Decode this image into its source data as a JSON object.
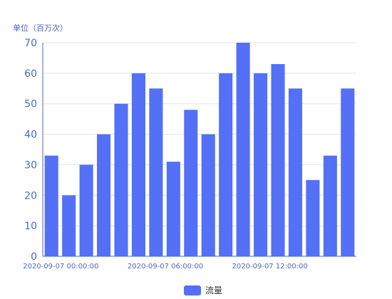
{
  "chart_data": {
    "type": "bar",
    "ylabel": "单位（百万次）",
    "ylim": [
      0,
      70
    ],
    "yticks": [
      0,
      10,
      20,
      30,
      40,
      50,
      60,
      70
    ],
    "x_tick_labels": [
      "2020-09-07 00:00:00",
      "2020-09-07 06:00:00",
      "2020-09-07 12:00:00"
    ],
    "x_tick_bar_index": [
      0,
      6,
      12
    ],
    "series": [
      {
        "name": "流量",
        "values": [
          33,
          20,
          30,
          40,
          50,
          60,
          55,
          31,
          48,
          40,
          60,
          70,
          60,
          63,
          55,
          25,
          33,
          55
        ]
      }
    ],
    "colors": {
      "bar": "#5470f6",
      "axis": "#4a67c8",
      "grid": "#dbe8ee",
      "tick_text": "#4a67c8"
    },
    "legend_position": "bottom-center",
    "grid": true
  }
}
